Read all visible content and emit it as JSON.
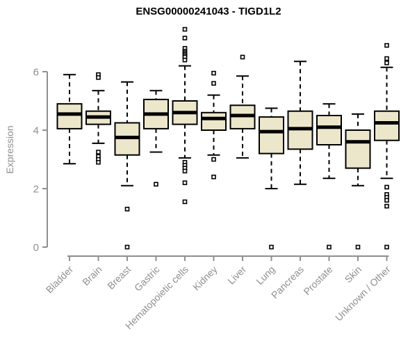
{
  "title": "ENSG00000241043 - TIGD1L2",
  "chart_data": {
    "type": "boxplot",
    "title": "ENSG00000241043 - TIGD1L2",
    "xlabel": "",
    "ylabel": "Expression",
    "yticks": [
      0,
      2,
      4,
      6
    ],
    "ylim": [
      0,
      7.6
    ],
    "grid": false,
    "legend": false,
    "categories": [
      "Bladder",
      "Brain",
      "Breast",
      "Gastric",
      "Hematopoietic cells",
      "Kidney",
      "Liver",
      "Lung",
      "Pancreas",
      "Prostate",
      "Skin",
      "Unknown / Other"
    ],
    "series": [
      {
        "category": "Bladder",
        "whisker_low": 2.85,
        "q1": 4.05,
        "median": 4.55,
        "q3": 4.9,
        "whisker_high": 5.9,
        "outliers": []
      },
      {
        "category": "Brain",
        "whisker_low": 3.55,
        "q1": 4.2,
        "median": 4.45,
        "q3": 4.65,
        "whisker_high": 5.35,
        "outliers": [
          5.9,
          5.8,
          3.25,
          3.1,
          3.0,
          2.9
        ]
      },
      {
        "category": "Breast",
        "whisker_low": 2.1,
        "q1": 3.15,
        "median": 3.75,
        "q3": 4.25,
        "whisker_high": 5.65,
        "outliers": [
          1.3,
          0.0
        ]
      },
      {
        "category": "Gastric",
        "whisker_low": 3.25,
        "q1": 4.05,
        "median": 4.55,
        "q3": 5.05,
        "whisker_high": 5.35,
        "outliers": [
          2.15
        ]
      },
      {
        "category": "Hematopoietic cells",
        "whisker_low": 3.05,
        "q1": 4.2,
        "median": 4.6,
        "q3": 5.0,
        "whisker_high": 6.2,
        "outliers": [
          7.45,
          7.15,
          6.8,
          6.7,
          6.65,
          6.6,
          6.55,
          6.5,
          6.4,
          2.9,
          2.8,
          2.7,
          2.6,
          2.2,
          1.55
        ]
      },
      {
        "category": "Kidney",
        "whisker_low": 3.15,
        "q1": 4.0,
        "median": 4.4,
        "q3": 4.6,
        "whisker_high": 5.2,
        "outliers": [
          5.95,
          5.6,
          3.0,
          2.4
        ]
      },
      {
        "category": "Liver",
        "whisker_low": 3.05,
        "q1": 4.05,
        "median": 4.5,
        "q3": 4.85,
        "whisker_high": 5.85,
        "outliers": [
          6.5
        ]
      },
      {
        "category": "Lung",
        "whisker_low": 2.0,
        "q1": 3.2,
        "median": 3.95,
        "q3": 4.45,
        "whisker_high": 4.75,
        "outliers": [
          0.0
        ]
      },
      {
        "category": "Pancreas",
        "whisker_low": 2.15,
        "q1": 3.35,
        "median": 4.05,
        "q3": 4.65,
        "whisker_high": 6.35,
        "outliers": []
      },
      {
        "category": "Prostate",
        "whisker_low": 2.35,
        "q1": 3.5,
        "median": 4.1,
        "q3": 4.5,
        "whisker_high": 4.9,
        "outliers": [
          0.0
        ]
      },
      {
        "category": "Skin",
        "whisker_low": 2.1,
        "q1": 2.7,
        "median": 3.6,
        "q3": 4.0,
        "whisker_high": 4.55,
        "outliers": [
          0.0
        ]
      },
      {
        "category": "Unknown / Other",
        "whisker_low": 2.35,
        "q1": 3.65,
        "median": 4.25,
        "q3": 4.65,
        "whisker_high": 6.15,
        "outliers": [
          6.9,
          6.45,
          6.3,
          2.05,
          1.8,
          1.7,
          1.6,
          1.4,
          0.0
        ]
      }
    ],
    "colors": {
      "box_fill": "#ece6cb",
      "box_border": "#000000",
      "median": "#000000",
      "whisker": "#000000",
      "outlier_fill": "#ffffff",
      "axis": "#8f8f8f",
      "tick_label": "#8f8f8f",
      "title": "#000000"
    }
  }
}
